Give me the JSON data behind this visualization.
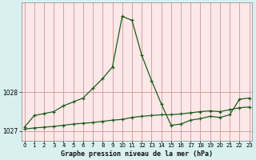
{
  "title": "Graphe pression niveau de la mer (hPa)",
  "bg_outer": "#d8f0f0",
  "bg_plot": "#fce8e8",
  "grid_color": "#cc9999",
  "line_color": "#1a5e1a",
  "ylim": [
    1026.75,
    1030.3
  ],
  "xlim": [
    -0.3,
    23.3
  ],
  "yticks": [
    1027,
    1028
  ],
  "xticks": [
    0,
    1,
    2,
    3,
    4,
    5,
    6,
    7,
    8,
    9,
    10,
    11,
    12,
    13,
    14,
    15,
    16,
    17,
    18,
    19,
    20,
    21,
    22,
    23
  ],
  "series1_x": [
    0,
    1,
    2,
    3,
    4,
    5,
    6,
    7,
    8,
    9,
    10,
    11,
    12,
    13,
    14,
    15,
    16,
    17,
    18,
    19,
    20,
    21,
    22,
    23
  ],
  "series1_y": [
    1027.1,
    1027.4,
    1027.45,
    1027.5,
    1027.65,
    1027.75,
    1027.85,
    1028.1,
    1028.35,
    1028.65,
    1029.95,
    1029.85,
    1028.95,
    1028.3,
    1027.7,
    1027.15,
    1027.18,
    1027.28,
    1027.32,
    1027.38,
    1027.35,
    1027.42,
    1027.82,
    1027.85
  ],
  "series2_x": [
    0,
    1,
    2,
    3,
    4,
    5,
    6,
    7,
    8,
    9,
    10,
    11,
    12,
    13,
    14,
    15,
    16,
    17,
    18,
    19,
    20,
    21,
    22,
    23
  ],
  "series2_y": [
    1027.05,
    1027.08,
    1027.1,
    1027.12,
    1027.15,
    1027.18,
    1027.2,
    1027.22,
    1027.25,
    1027.28,
    1027.3,
    1027.35,
    1027.38,
    1027.4,
    1027.42,
    1027.42,
    1027.44,
    1027.47,
    1027.5,
    1027.52,
    1027.5,
    1027.55,
    1027.6,
    1027.62
  ]
}
